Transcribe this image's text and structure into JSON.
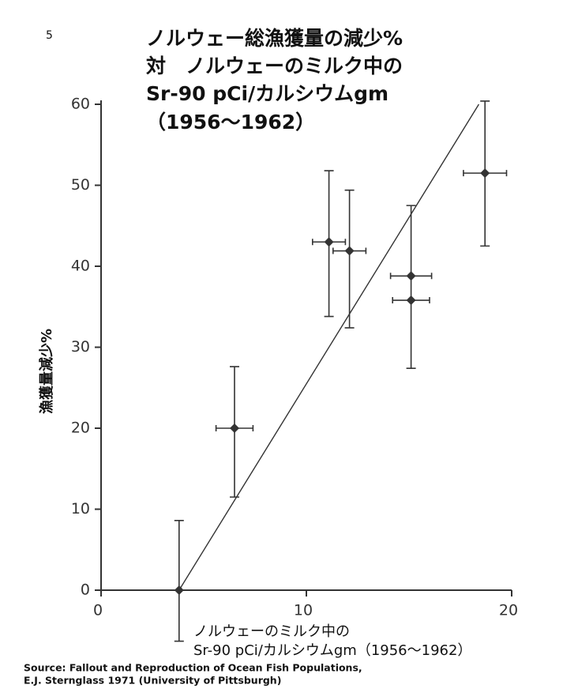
{
  "page_number": "5",
  "chart_data": {
    "type": "scatter",
    "title": [
      "ノルウェー総漁獲量の減少%",
      "対　ノルウェーのミルク中の",
      "Sr-90 pCi/カルシウムgm",
      "（1956〜1962）"
    ],
    "y_label": "漁獲量減少%",
    "x_label": [
      "ノルウェーのミルク中の",
      "Sr-90 pCi/カルシウムgm（1956〜1962）"
    ],
    "x": [
      3.8,
      6.5,
      11.1,
      12.1,
      15.1,
      15.1,
      18.7
    ],
    "values": [
      0,
      20,
      43,
      41.9,
      38.8,
      35.8,
      51.5
    ],
    "xerr": [
      null,
      0.9,
      0.8,
      0.8,
      1.0,
      0.9,
      1.05
    ],
    "yerr_plus": [
      8.6,
      7.6,
      8.8,
      7.5,
      8.7,
      null,
      8.9
    ],
    "yerr_minus": [
      6.3,
      8.5,
      9.2,
      9.5,
      11.4,
      null,
      9.0
    ],
    "fit_line": {
      "x": [
        3.8,
        18.4
      ],
      "y": [
        0,
        60
      ]
    },
    "color": "#333333",
    "xlim": [
      0,
      20
    ],
    "xticks": [
      0,
      10,
      20
    ],
    "ylim": [
      0,
      60
    ],
    "yticks": [
      0,
      10,
      20,
      30,
      40,
      50,
      60
    ]
  },
  "source": [
    "Source: Fallout and Reproduction of Ocean Fish Populations,",
    "E.J. Sternglass 1971 (University of Pittsburgh)"
  ]
}
